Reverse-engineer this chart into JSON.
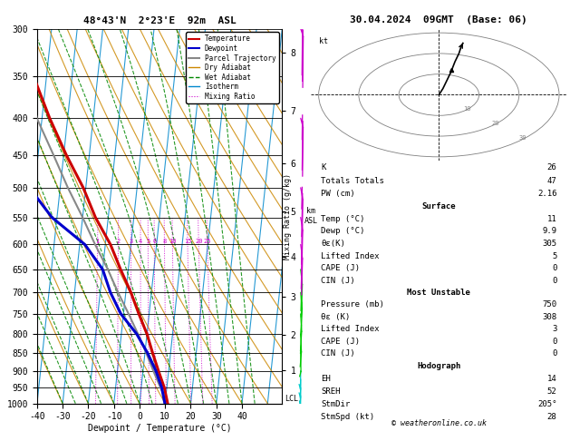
{
  "title_left": "48°43'N  2°23'E  92m  ASL",
  "title_right": "30.04.2024  09GMT  (Base: 06)",
  "xlabel": "Dewpoint / Temperature (°C)",
  "pressure_levels": [
    300,
    350,
    400,
    450,
    500,
    550,
    600,
    650,
    700,
    750,
    800,
    850,
    900,
    950,
    1000
  ],
  "temp_data": {
    "pressure": [
      1000,
      950,
      900,
      850,
      800,
      750,
      700,
      650,
      600,
      550,
      500,
      450,
      400,
      350,
      300
    ],
    "temp": [
      11,
      9,
      6,
      3,
      0,
      -4,
      -8,
      -13,
      -18,
      -25,
      -31,
      -39,
      -47,
      -55,
      -57
    ]
  },
  "dewp_data": {
    "pressure": [
      1000,
      950,
      900,
      850,
      800,
      750,
      700,
      650,
      600,
      550,
      500,
      450,
      400
    ],
    "dewp": [
      9.9,
      8,
      5,
      1,
      -4,
      -11,
      -16,
      -20,
      -28,
      -42,
      -52,
      -60,
      -62
    ]
  },
  "parcel_data": {
    "pressure": [
      1000,
      950,
      900,
      850,
      800,
      750,
      700,
      650,
      600,
      550,
      500,
      450,
      400,
      350,
      300
    ],
    "temp": [
      11,
      7.5,
      4,
      0.5,
      -3.5,
      -8,
      -13,
      -18,
      -24,
      -30,
      -37,
      -44,
      -52,
      -57,
      -60
    ]
  },
  "temp_color": "#cc0000",
  "dewp_color": "#0000cc",
  "parcel_color": "#888888",
  "dry_adiabat_color": "#cc8800",
  "wet_adiabat_color": "#008800",
  "isotherm_color": "#0088cc",
  "mixing_ratio_color": "#cc00cc",
  "km_labels": [
    1,
    2,
    3,
    4,
    5,
    6,
    7,
    8
  ],
  "km_pressures": [
    899,
    802,
    710,
    624,
    540,
    462,
    390,
    324
  ],
  "mixing_ratio_labels": [
    "1",
    "2",
    "3",
    "4",
    "5",
    "6",
    "8",
    "10",
    "15",
    "20",
    "25"
  ],
  "mixing_ratio_values": [
    1,
    2,
    3,
    4,
    5,
    6,
    8,
    10,
    15,
    20,
    25
  ],
  "lcl_pressure": 985,
  "wind_barbs": [
    {
      "p": 1000,
      "color": "#ffcc00",
      "speed": 5,
      "dir": 180
    },
    {
      "p": 975,
      "color": "#00cccc",
      "speed": 5,
      "dir": 175
    },
    {
      "p": 950,
      "color": "#00cccc",
      "speed": 8,
      "dir": 170
    },
    {
      "p": 925,
      "color": "#00cccc",
      "speed": 10,
      "dir": 175
    },
    {
      "p": 900,
      "color": "#00cccc",
      "speed": 10,
      "dir": 175
    },
    {
      "p": 850,
      "color": "#00cc00",
      "speed": 12,
      "dir": 185
    },
    {
      "p": 800,
      "color": "#00cc00",
      "speed": 15,
      "dir": 195
    },
    {
      "p": 750,
      "color": "#00cc00",
      "speed": 15,
      "dir": 200
    },
    {
      "p": 700,
      "color": "#00cc00",
      "speed": 18,
      "dir": 210
    },
    {
      "p": 650,
      "color": "#00cc00",
      "speed": 20,
      "dir": 215
    },
    {
      "p": 600,
      "color": "#cc00cc",
      "speed": 20,
      "dir": 220
    },
    {
      "p": 550,
      "color": "#cc00cc",
      "speed": 22,
      "dir": 225
    },
    {
      "p": 500,
      "color": "#cc00cc",
      "speed": 25,
      "dir": 230
    },
    {
      "p": 400,
      "color": "#cc00cc",
      "speed": 28,
      "dir": 240
    },
    {
      "p": 300,
      "color": "#cc00cc",
      "speed": 30,
      "dir": 245
    }
  ],
  "background_color": "#ffffff",
  "skew_factor": 30,
  "p_min": 300,
  "p_max": 1000
}
